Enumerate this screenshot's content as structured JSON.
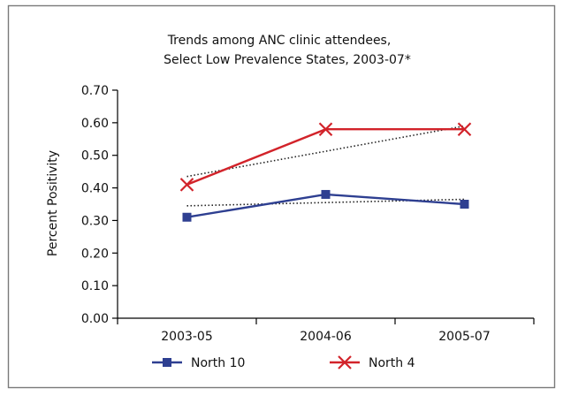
{
  "colors": {
    "border": "#7a7a7a",
    "axis": "#000000",
    "trendline": "#222222",
    "background": "#ffffff"
  },
  "chart_data": {
    "type": "line",
    "title_lines": [
      "Trends among ANC clinic attendees,",
      "Select Low Prevalence States, 2003-07*"
    ],
    "xlabel": "",
    "ylabel": "Percent Positivity",
    "categories": [
      "2003-05",
      "2004-06",
      "2005-07"
    ],
    "ylim": [
      0,
      0.7
    ],
    "yticks": [
      0.0,
      0.1,
      0.2,
      0.3,
      0.4,
      0.5,
      0.6,
      0.7
    ],
    "ytick_labels": [
      "0.00",
      "0.10",
      "0.20",
      "0.30",
      "0.40",
      "0.50",
      "0.60",
      "0.70"
    ],
    "grid": false,
    "legend_position": "bottom",
    "series": [
      {
        "name": "North 10",
        "values": [
          0.31,
          0.38,
          0.35
        ],
        "color": "#2e3f91",
        "marker": "square",
        "trendline": [
          0.345,
          0.365
        ]
      },
      {
        "name": "North 4",
        "values": [
          0.41,
          0.58,
          0.58
        ],
        "color": "#d2232a",
        "marker": "x",
        "trendline": [
          0.435,
          0.59
        ]
      }
    ]
  }
}
